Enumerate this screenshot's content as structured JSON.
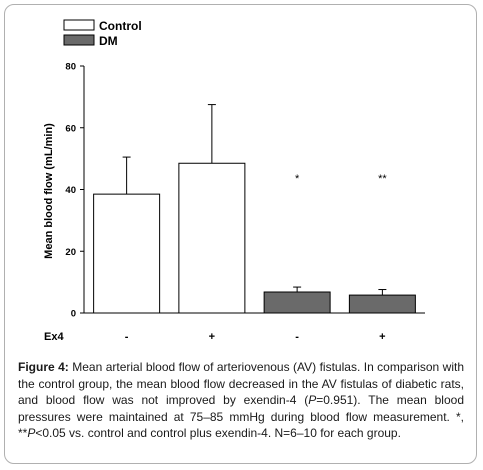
{
  "chart_data": {
    "type": "bar",
    "title": "",
    "xlabel": "Ex4",
    "ylabel": "Mean blood flow (mL/min)",
    "ylim": [
      0,
      80
    ],
    "yticks": [
      0,
      20,
      40,
      60,
      80
    ],
    "categories": [
      "-",
      "+",
      "-",
      "+"
    ],
    "values": [
      38.5,
      48.5,
      6.8,
      5.8
    ],
    "errors": [
      12.0,
      19.0,
      1.6,
      1.8
    ],
    "groups": [
      "Control",
      "Control",
      "DM",
      "DM"
    ],
    "annotations": [
      "",
      "",
      "*",
      "**"
    ],
    "legend": [
      {
        "name": "Control",
        "color": "#ffffff"
      },
      {
        "name": "DM",
        "color": "#6a6a6a"
      }
    ],
    "legend_position": "top-left",
    "grid": false
  },
  "caption": {
    "label": "Figure 4:",
    "text_1": " Mean arterial blood flow of arteriovenous (AV) fistulas. In comparison with the control group, the mean blood flow decreased in the AV fistulas of diabetic rats, and blood flow was not improved by exendin-4 (",
    "p_italic_1": "P",
    "text_2": "=0.951). The mean blood pressures were maintained at 75–85 mmHg during blood flow measurement. *, **",
    "p_italic_2": "P",
    "text_3": "<0.05 vs. control and control plus exendin-4. N=6–10 for each group."
  }
}
